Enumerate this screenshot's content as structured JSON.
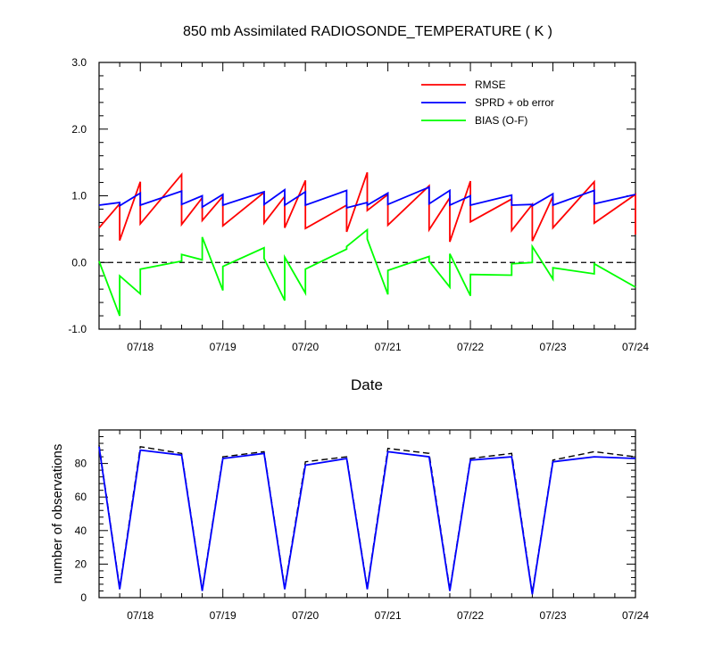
{
  "chart_data": [
    {
      "type": "line",
      "title": "850 mb Assimilated RADIOSONDE_TEMPERATURE ( K )",
      "xlabel": "Date",
      "ylabel": "",
      "xlim": [
        17.5,
        24.0
      ],
      "ylim": [
        -1.0,
        3.0
      ],
      "y_ticks": [
        -1.0,
        0.0,
        1.0,
        2.0,
        3.0
      ],
      "y_tick_labels": [
        "-1.0",
        "0.0",
        "1.0",
        "2.0",
        "3.0"
      ],
      "x_ticks": [
        18,
        19,
        20,
        21,
        22,
        23,
        24
      ],
      "x_tick_labels": [
        "07/18",
        "07/19",
        "07/20",
        "07/21",
        "07/22",
        "07/23",
        "07/24"
      ],
      "zero_line": {
        "y": 0,
        "style": "dashed",
        "color": "#000000"
      },
      "legend": {
        "placement": "top-right"
      },
      "series": [
        {
          "name": "RMSE",
          "color": "#ff0000",
          "x": [
            17.5,
            17.75,
            17.75,
            18.0,
            18.0,
            18.5,
            18.5,
            18.75,
            18.75,
            19.0,
            19.0,
            19.5,
            19.5,
            19.75,
            19.75,
            20.0,
            20.0,
            20.5,
            20.5,
            20.75,
            20.75,
            21.0,
            21.0,
            21.5,
            21.5,
            21.75,
            21.75,
            22.0,
            22.0,
            22.5,
            22.5,
            22.75,
            22.75,
            23.0,
            23.0,
            23.5,
            23.5,
            24.0,
            24.0
          ],
          "y": [
            0.52,
            0.88,
            0.33,
            1.21,
            0.58,
            1.32,
            0.57,
            0.97,
            0.63,
            0.99,
            0.55,
            1.05,
            0.59,
            0.99,
            0.52,
            1.23,
            0.51,
            0.86,
            0.46,
            1.35,
            0.78,
            1.02,
            0.56,
            1.15,
            0.49,
            0.97,
            0.31,
            1.22,
            0.61,
            0.95,
            0.48,
            0.87,
            0.32,
            0.99,
            0.52,
            1.21,
            0.59,
            1.02,
            0.42
          ]
        },
        {
          "name": "SPRD + ob error",
          "color": "#0000ff",
          "x": [
            17.5,
            17.75,
            17.75,
            18.0,
            18.0,
            18.5,
            18.5,
            18.75,
            18.75,
            19.0,
            19.0,
            19.5,
            19.5,
            19.75,
            19.75,
            20.0,
            20.0,
            20.5,
            20.5,
            20.75,
            20.75,
            21.0,
            21.0,
            21.5,
            21.5,
            21.75,
            21.75,
            22.0,
            22.0,
            22.5,
            22.5,
            22.75,
            22.75,
            23.0,
            23.0,
            23.5,
            23.5,
            24.0
          ],
          "y": [
            0.86,
            0.9,
            0.85,
            1.04,
            0.86,
            1.07,
            0.87,
            1.0,
            0.83,
            1.02,
            0.86,
            1.06,
            0.87,
            1.09,
            0.86,
            1.06,
            0.86,
            1.08,
            0.82,
            0.9,
            0.86,
            1.04,
            0.87,
            1.13,
            0.88,
            1.08,
            0.86,
            1.0,
            0.86,
            1.01,
            0.86,
            0.87,
            0.85,
            1.03,
            0.86,
            1.08,
            0.88,
            1.02
          ]
        },
        {
          "name": "BIAS (O-F)",
          "color": "#00ff00",
          "x": [
            17.5,
            17.75,
            17.75,
            18.0,
            18.0,
            18.5,
            18.5,
            18.75,
            18.75,
            19.0,
            19.0,
            19.5,
            19.5,
            19.75,
            19.75,
            20.0,
            20.0,
            20.5,
            20.5,
            20.75,
            20.75,
            21.0,
            21.0,
            21.5,
            21.5,
            21.75,
            21.75,
            22.0,
            22.0,
            22.5,
            22.5,
            22.75,
            22.75,
            23.0,
            23.0,
            23.5,
            23.5,
            24.0
          ],
          "y": [
            0.02,
            -0.8,
            -0.2,
            -0.47,
            -0.1,
            0.02,
            0.12,
            0.04,
            0.38,
            -0.42,
            -0.06,
            0.22,
            0.06,
            -0.57,
            0.08,
            -0.46,
            -0.1,
            0.2,
            0.24,
            0.49,
            0.35,
            -0.48,
            -0.12,
            0.09,
            0.02,
            -0.37,
            0.13,
            -0.5,
            -0.18,
            -0.19,
            -0.02,
            0.0,
            0.24,
            -0.25,
            -0.08,
            -0.17,
            -0.02,
            -0.37
          ]
        }
      ]
    },
    {
      "type": "line",
      "title": "",
      "xlabel": "",
      "ylabel": "number of observations",
      "xlim": [
        17.5,
        24.0
      ],
      "ylim": [
        0,
        100
      ],
      "y_ticks": [
        0,
        20,
        40,
        60,
        80
      ],
      "y_tick_labels": [
        "0",
        "20",
        "40",
        "60",
        "80"
      ],
      "x_ticks": [
        18,
        19,
        20,
        21,
        22,
        23,
        24
      ],
      "x_tick_labels": [
        "07/18",
        "07/19",
        "07/20",
        "07/21",
        "07/22",
        "07/23",
        "07/24"
      ],
      "series": [
        {
          "color": "#000000",
          "style": "dashed",
          "x": [
            17.5,
            17.75,
            18.0,
            18.5,
            18.75,
            19.0,
            19.5,
            19.75,
            20.0,
            20.5,
            20.75,
            21.0,
            21.5,
            21.75,
            22.0,
            22.5,
            22.75,
            23.0,
            23.5,
            24.0
          ],
          "y": [
            91,
            6,
            90,
            86,
            5,
            84,
            87,
            6,
            81,
            84,
            6,
            89,
            86,
            5,
            83,
            86,
            3,
            82,
            87,
            84
          ]
        },
        {
          "color": "#0000ff",
          "style": "solid",
          "x": [
            17.5,
            17.75,
            18.0,
            18.5,
            18.75,
            19.0,
            19.5,
            19.75,
            20.0,
            20.5,
            20.75,
            21.0,
            21.5,
            21.75,
            22.0,
            22.5,
            22.75,
            23.0,
            23.5,
            24.0
          ],
          "y": [
            90,
            5,
            88,
            85,
            4,
            83,
            86,
            5,
            79,
            83,
            5,
            87,
            84,
            4,
            82,
            84,
            2,
            81,
            84,
            83
          ]
        }
      ]
    }
  ]
}
